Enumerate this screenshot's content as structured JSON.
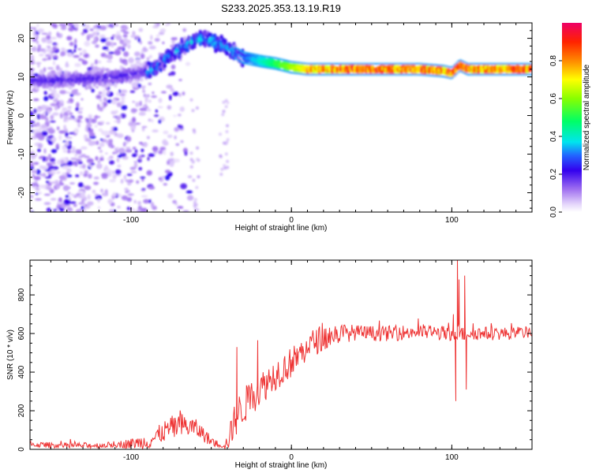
{
  "title": "S233.2025.353.13.19.R19",
  "chart_data": [
    {
      "type": "heatmap",
      "xlabel": "Height of straight line (km)",
      "ylabel": "Frequency (Hz)",
      "xlim": [
        -163,
        150
      ],
      "ylim": [
        -25,
        24
      ],
      "xticks": [
        -100,
        0,
        100
      ],
      "yticks": [
        20,
        10,
        0,
        -10,
        -20
      ],
      "colorbar": {
        "label": "Normalized spectral amplitude",
        "range": [
          0,
          1
        ],
        "ticks": [
          0.0,
          0.2,
          0.4,
          0.6,
          0.8
        ],
        "tick_labels": [
          "0.0",
          "0.2",
          "0.4",
          "0.6",
          "0.8"
        ]
      },
      "ridge": {
        "x": [
          -163,
          -150,
          -130,
          -110,
          -95,
          -85,
          -78,
          -70,
          -62,
          -55,
          -48,
          -42,
          -38,
          -34,
          -30,
          -24,
          -18,
          -10,
          0,
          10,
          20,
          40,
          60,
          80,
          95,
          100,
          105,
          110,
          130,
          150
        ],
        "y": [
          9,
          9,
          9.5,
          10,
          11,
          12,
          15,
          17,
          19,
          20,
          19,
          18,
          17,
          16,
          15,
          14.5,
          14,
          13.5,
          12.5,
          12,
          12,
          12,
          12,
          12,
          11.5,
          11,
          13,
          12,
          12,
          12
        ]
      }
    },
    {
      "type": "line",
      "xlabel": "Height of straight line (km)",
      "ylabel": "SNR (10 * v/v)",
      "xlim": [
        -163,
        150
      ],
      "ylim": [
        0,
        980
      ],
      "xticks": [
        -100,
        0,
        100
      ],
      "yticks": [
        0,
        200,
        400,
        600,
        800
      ],
      "color": "#ee3333",
      "envelope": {
        "x": [
          -163,
          -140,
          -120,
          -100,
          -90,
          -85,
          -80,
          -75,
          -70,
          -65,
          -60,
          -55,
          -50,
          -45,
          -40,
          -38,
          -35,
          -30,
          -25,
          -20,
          -15,
          -10,
          -5,
          0,
          5,
          10,
          15,
          20,
          25,
          30,
          40,
          50,
          60,
          70,
          80,
          90,
          95,
          100,
          102,
          104,
          106,
          108,
          110,
          120,
          130,
          140,
          150
        ],
        "y": [
          25,
          20,
          20,
          30,
          40,
          60,
          90,
          110,
          120,
          120,
          110,
          80,
          40,
          25,
          30,
          80,
          160,
          220,
          270,
          310,
          350,
          390,
          420,
          450,
          490,
          530,
          560,
          580,
          590,
          600,
          605,
          600,
          600,
          605,
          610,
          605,
          600,
          580,
          600,
          620,
          600,
          590,
          605,
          600,
          600,
          600,
          610
        ]
      },
      "noise_amplitude": {
        "x": [
          -163,
          -110,
          -90,
          -70,
          -55,
          -45,
          -40,
          -35,
          -20,
          0,
          20,
          40,
          100,
          150
        ],
        "y": [
          15,
          15,
          40,
          70,
          40,
          15,
          40,
          100,
          90,
          80,
          70,
          40,
          40,
          30
        ]
      },
      "spikes": [
        {
          "x": -34,
          "y": 530
        },
        {
          "x": -21,
          "y": 565
        },
        {
          "x": 101,
          "y": 700
        },
        {
          "x": 102.5,
          "y": 250
        },
        {
          "x": 103.5,
          "y": 980
        },
        {
          "x": 104.5,
          "y": 880
        },
        {
          "x": 108,
          "y": 900
        },
        {
          "x": 109,
          "y": 310
        }
      ]
    }
  ]
}
